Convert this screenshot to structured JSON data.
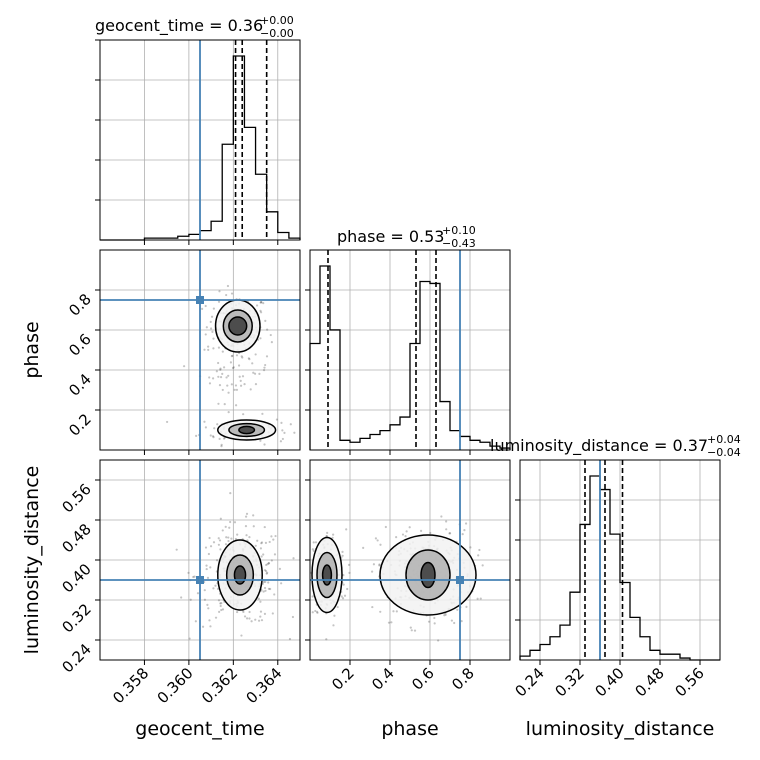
{
  "colors": {
    "truth": "#4682b4",
    "hist": "#000000",
    "grid": "#b0b0b0",
    "points": "#555555"
  },
  "chart_data": {
    "type": "corner",
    "parameters": [
      "geocent_time",
      "phase",
      "luminosity_distance"
    ],
    "truths": {
      "geocent_time": 0.3605,
      "phase": 0.75,
      "luminosity_distance": 0.36
    },
    "diagonal": [
      {
        "name": "geocent_time",
        "title_main": "geocent_time = 0.36",
        "title_sup": "+0.00",
        "title_sub": "−0.00",
        "range": [
          0.356,
          0.365
        ],
        "quantiles": [
          0.3621,
          0.3624,
          0.3635
        ],
        "bin_edges": [
          0.356,
          0.3565,
          0.357,
          0.3575,
          0.358,
          0.3585,
          0.359,
          0.3595,
          0.36,
          0.3605,
          0.361,
          0.3615,
          0.362,
          0.3625,
          0.363,
          0.3635,
          0.364,
          0.3645,
          0.365
        ],
        "counts": [
          0,
          0,
          0,
          0,
          0.01,
          0.01,
          0.01,
          0.02,
          0.03,
          0.05,
          0.1,
          0.51,
          0.98,
          0.6,
          0.35,
          0.15,
          0.04,
          0.01
        ]
      },
      {
        "name": "phase",
        "title_main": "phase = 0.53",
        "title_sup": "+0.10",
        "title_sub": "−0.43",
        "range": [
          0.0,
          1.0
        ],
        "quantiles": [
          0.09,
          0.53,
          0.63
        ],
        "bin_edges": [
          0.0,
          0.05,
          0.1,
          0.15,
          0.2,
          0.25,
          0.3,
          0.35,
          0.4,
          0.45,
          0.5,
          0.55,
          0.6,
          0.65,
          0.7,
          0.75,
          0.8,
          0.85,
          0.9,
          0.95,
          1.0
        ],
        "counts": [
          0.55,
          0.95,
          0.62,
          0.05,
          0.04,
          0.06,
          0.08,
          0.1,
          0.13,
          0.17,
          0.55,
          0.87,
          0.86,
          0.25,
          0.1,
          0.07,
          0.05,
          0.04,
          0.02,
          0.01
        ]
      },
      {
        "name": "luminosity_distance",
        "title_main": "luminosity_distance = 0.37",
        "title_sup": "+0.04",
        "title_sub": "−0.04",
        "range": [
          0.2,
          0.6
        ],
        "quantiles": [
          0.33,
          0.37,
          0.405
        ],
        "bin_edges": [
          0.2,
          0.22,
          0.24,
          0.26,
          0.28,
          0.3,
          0.32,
          0.34,
          0.36,
          0.38,
          0.4,
          0.42,
          0.44,
          0.46,
          0.48,
          0.5,
          0.52,
          0.54,
          0.56,
          0.58,
          0.6
        ],
        "counts": [
          0.02,
          0.05,
          0.08,
          0.12,
          0.18,
          0.35,
          0.7,
          0.95,
          0.88,
          0.65,
          0.4,
          0.22,
          0.12,
          0.05,
          0.03,
          0.03,
          0.01,
          0.0,
          0.0,
          0.0
        ]
      }
    ],
    "x_axis": {
      "geocent_time": {
        "ticks": [
          "0.358",
          "0.360",
          "0.362",
          "0.364"
        ],
        "label": "geocent_time"
      },
      "phase": {
        "ticks": [
          "0.2",
          "0.4",
          "0.6",
          "0.8"
        ],
        "label": "phase"
      },
      "luminosity_distance": {
        "ticks": [
          "0.24",
          "0.32",
          "0.40",
          "0.48",
          "0.56"
        ],
        "label": "luminosity_distance"
      }
    },
    "y_axis": {
      "phase": {
        "ticks": [
          "0.2",
          "0.4",
          "0.6",
          "0.8"
        ],
        "label": "phase"
      },
      "luminosity_distance": {
        "ticks": [
          "0.24",
          "0.32",
          "0.40",
          "0.48",
          "0.56"
        ],
        "label": "luminosity_distance"
      }
    },
    "grid": true,
    "clusters": {
      "phase_vs_geocent_time": [
        {
          "x": 0.3622,
          "y": 0.62,
          "sx": 0.0007,
          "sy": 0.08,
          "n": 140
        },
        {
          "x": 0.3625,
          "y": 0.1,
          "sx": 0.001,
          "sy": 0.035,
          "n": 90
        },
        {
          "x": 0.3621,
          "y": 0.4,
          "sx": 0.0008,
          "sy": 0.08,
          "n": 60
        }
      ],
      "luminosity_distance_vs_geocent_time": [
        {
          "x": 0.3623,
          "y": 0.37,
          "sx": 0.001,
          "sy": 0.05,
          "n": 260
        }
      ],
      "luminosity_distance_vs_phase": [
        {
          "x": 0.09,
          "y": 0.37,
          "sx": 0.045,
          "sy": 0.045,
          "n": 160
        },
        {
          "x": 0.58,
          "y": 0.37,
          "sx": 0.12,
          "sy": 0.05,
          "n": 260
        }
      ]
    },
    "contours": {
      "phase_vs_geocent_time": [
        {
          "cx": 0.3622,
          "cy": 0.62,
          "rx": [
            0.0004,
            0.00065,
            0.001
          ],
          "ry": [
            0.045,
            0.08,
            0.13
          ]
        },
        {
          "cx": 0.3626,
          "cy": 0.1,
          "rx": [
            0.00035,
            0.0008,
            0.0013
          ],
          "ry": [
            0.018,
            0.032,
            0.05
          ]
        }
      ],
      "luminosity_distance_vs_geocent_time": [
        {
          "cx": 0.3623,
          "cy": 0.37,
          "rx": [
            0.00025,
            0.0006,
            0.001
          ],
          "ry": [
            0.018,
            0.04,
            0.07
          ]
        }
      ],
      "luminosity_distance_vs_phase": [
        {
          "cx": 0.085,
          "cy": 0.37,
          "rx": [
            0.022,
            0.05,
            0.075
          ],
          "ry": [
            0.02,
            0.045,
            0.075
          ]
        },
        {
          "cx": 0.59,
          "cy": 0.37,
          "rx": [
            0.035,
            0.11,
            0.24
          ],
          "ry": [
            0.025,
            0.05,
            0.08
          ]
        }
      ]
    }
  }
}
